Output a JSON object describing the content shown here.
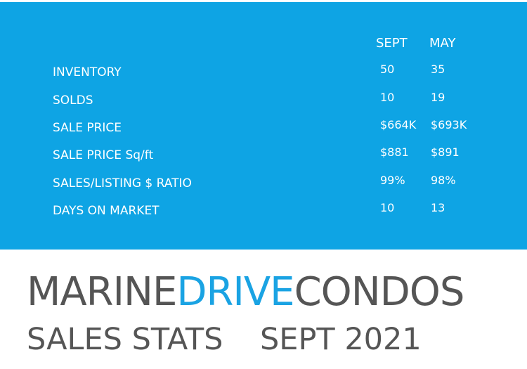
{
  "table": {
    "columns": [
      "SEPT",
      "MAY"
    ],
    "rows": [
      [
        "INVENTORY",
        "50",
        "35"
      ],
      [
        "SOLDS",
        "10",
        "19"
      ],
      [
        "SALE PRICE",
        "$664K",
        "$693K"
      ],
      [
        "SALE PRICE Sq/ft",
        "$881",
        "$891"
      ],
      [
        "SALES/LISTING $ RATIO",
        "99%",
        "98%"
      ],
      [
        "DAYS ON MARKET",
        "10",
        "13"
      ]
    ]
  },
  "footer": {
    "title_parts": [
      "MARINE",
      "DRIVE",
      "CONDOS"
    ],
    "subtitle": "SALES STATS",
    "date": "SEPT 2021"
  }
}
